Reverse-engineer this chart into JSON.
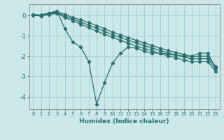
{
  "background_color": "#cce8e8",
  "grid_color": "#aacfcf",
  "line_color": "#2a6e6e",
  "xlabel": "Humidex (Indice chaleur)",
  "xlim": [
    -0.5,
    23.5
  ],
  "ylim": [
    -4.6,
    0.55
  ],
  "yticks": [
    0,
    -1,
    -2,
    -3,
    -4
  ],
  "ytick_labels": [
    "0",
    "-1",
    "-2",
    "-3",
    "-4"
  ],
  "xticks": [
    0,
    1,
    2,
    3,
    4,
    5,
    6,
    7,
    8,
    9,
    10,
    11,
    12,
    13,
    14,
    15,
    16,
    17,
    18,
    19,
    20,
    21,
    22,
    23
  ],
  "series": [
    {
      "x": [
        0,
        1,
        2,
        3,
        4,
        5,
        6,
        7,
        8,
        9,
        10,
        11,
        12,
        13,
        14,
        15,
        16,
        17,
        18,
        19,
        20,
        21,
        22,
        23
      ],
      "y": [
        0.05,
        -0.05,
        0.12,
        0.22,
        -0.65,
        -1.3,
        -1.55,
        -2.25,
        -4.35,
        -3.3,
        -2.35,
        -1.85,
        -1.55,
        -1.6,
        -1.75,
        -1.85,
        -1.85,
        -1.9,
        -1.95,
        -2.0,
        -2.0,
        -1.85,
        -1.85,
        -2.55
      ]
    },
    {
      "x": [
        0,
        1,
        2,
        3,
        4,
        5,
        6,
        7,
        8,
        9,
        10,
        11,
        12,
        13,
        14,
        15,
        16,
        17,
        18,
        19,
        20,
        21,
        22,
        23
      ],
      "y": [
        0.05,
        0.02,
        0.12,
        0.18,
        0.05,
        -0.1,
        -0.22,
        -0.35,
        -0.5,
        -0.65,
        -0.82,
        -0.95,
        -1.1,
        -1.22,
        -1.35,
        -1.48,
        -1.6,
        -1.72,
        -1.82,
        -1.92,
        -2.02,
        -2.0,
        -2.0,
        -2.5
      ]
    },
    {
      "x": [
        0,
        1,
        2,
        3,
        4,
        5,
        6,
        7,
        8,
        9,
        10,
        11,
        12,
        13,
        14,
        15,
        16,
        17,
        18,
        19,
        20,
        21,
        22,
        23
      ],
      "y": [
        0.02,
        0.0,
        0.08,
        0.14,
        -0.02,
        -0.18,
        -0.33,
        -0.48,
        -0.63,
        -0.78,
        -0.95,
        -1.08,
        -1.22,
        -1.35,
        -1.48,
        -1.6,
        -1.72,
        -1.84,
        -1.94,
        -2.04,
        -2.14,
        -2.12,
        -2.12,
        -2.62
      ]
    },
    {
      "x": [
        0,
        1,
        2,
        3,
        4,
        5,
        6,
        7,
        8,
        9,
        10,
        11,
        12,
        13,
        14,
        15,
        16,
        17,
        18,
        19,
        20,
        21,
        22,
        23
      ],
      "y": [
        0.0,
        -0.02,
        0.05,
        0.1,
        -0.1,
        -0.26,
        -0.43,
        -0.6,
        -0.77,
        -0.92,
        -1.08,
        -1.22,
        -1.36,
        -1.5,
        -1.62,
        -1.74,
        -1.86,
        -1.98,
        -2.08,
        -2.18,
        -2.28,
        -2.25,
        -2.25,
        -2.75
      ]
    }
  ]
}
